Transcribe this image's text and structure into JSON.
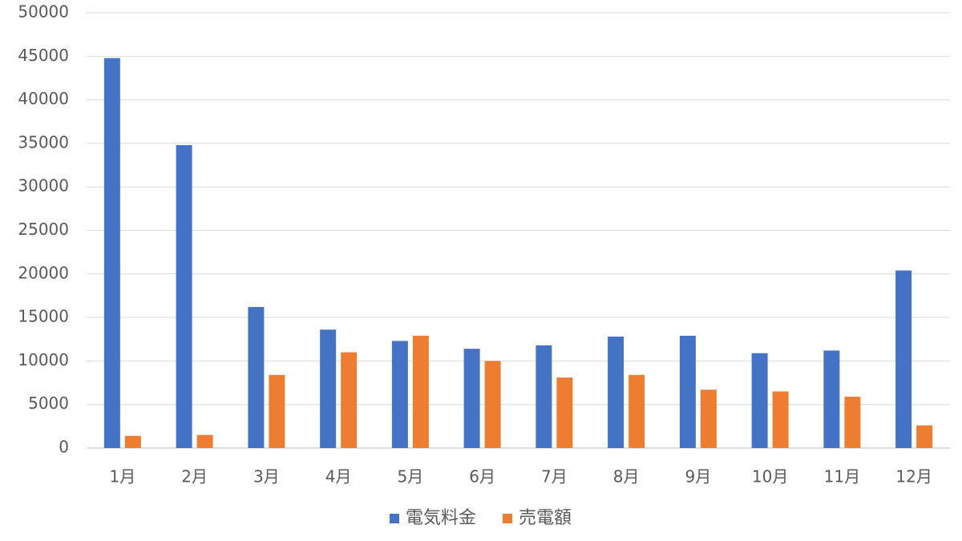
{
  "chart_data": {
    "type": "bar",
    "title": "",
    "xlabel": "",
    "ylabel": "",
    "ylim": [
      0,
      50000
    ],
    "yticks": [
      0,
      5000,
      10000,
      15000,
      20000,
      25000,
      30000,
      35000,
      40000,
      45000,
      50000
    ],
    "grid": true,
    "legend_position": "bottom",
    "categories": [
      "1月",
      "2月",
      "3月",
      "4月",
      "5月",
      "6月",
      "7月",
      "8月",
      "9月",
      "10月",
      "11月",
      "12月"
    ],
    "series": [
      {
        "name": "電気料金",
        "color": "#4472c4",
        "values": [
          44800,
          34800,
          16200,
          13600,
          12300,
          11400,
          11800,
          12800,
          12900,
          10900,
          11200,
          20400
        ]
      },
      {
        "name": "売電額",
        "color": "#ed7d31",
        "values": [
          1400,
          1500,
          8400,
          11000,
          12900,
          10000,
          8100,
          8400,
          6700,
          6500,
          5900,
          2600
        ]
      }
    ]
  }
}
